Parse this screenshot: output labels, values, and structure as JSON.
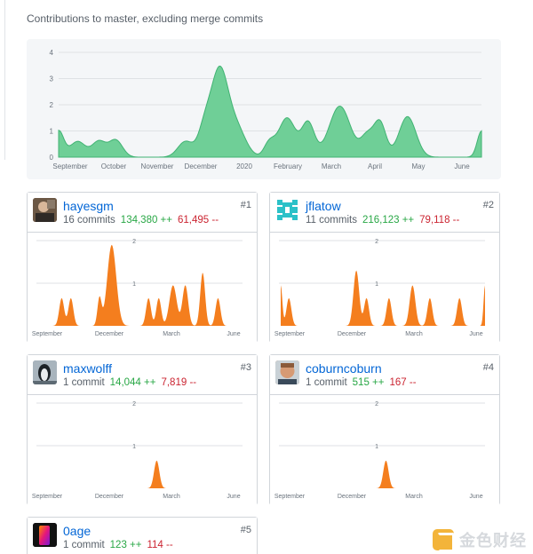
{
  "caption": "Contributions to master, excluding merge commits",
  "colors": {
    "main_fill": "#6fcf97",
    "main_stroke": "#41b373",
    "user_fill": "#f47e1e",
    "link": "#0366d6",
    "additions": "#28a745",
    "deletions": "#cb2431"
  },
  "chart_data": [
    {
      "type": "area",
      "title": "Contributions to master, excluding merge commits",
      "y_ticks": [
        "0",
        "1",
        "2",
        "3",
        "4"
      ],
      "ylim": [
        0,
        4
      ],
      "x_labels": [
        "September",
        "October",
        "November",
        "December",
        "2020",
        "February",
        "March",
        "April",
        "May",
        "June"
      ],
      "grid": true,
      "peaks": [
        {
          "at": 0.0,
          "h": 1.0,
          "w": 0.012
        },
        {
          "at": 0.045,
          "h": 0.6,
          "w": 0.018
        },
        {
          "at": 0.095,
          "h": 0.6,
          "w": 0.016
        },
        {
          "at": 0.135,
          "h": 0.65,
          "w": 0.016
        },
        {
          "at": 0.3,
          "h": 0.6,
          "w": 0.018
        },
        {
          "at": 0.345,
          "h": 1.0,
          "w": 0.015
        },
        {
          "at": 0.38,
          "h": 3.2,
          "w": 0.02
        },
        {
          "at": 0.42,
          "h": 1.1,
          "w": 0.022
        },
        {
          "at": 0.49,
          "h": 0.1,
          "w": 0.01
        },
        {
          "at": 0.5,
          "h": 0.45,
          "w": 0.012
        },
        {
          "at": 0.54,
          "h": 1.5,
          "w": 0.02
        },
        {
          "at": 0.59,
          "h": 1.3,
          "w": 0.015
        },
        {
          "at": 0.665,
          "h": 1.95,
          "w": 0.025
        },
        {
          "at": 0.73,
          "h": 0.8,
          "w": 0.015
        },
        {
          "at": 0.76,
          "h": 1.3,
          "w": 0.014
        },
        {
          "at": 0.825,
          "h": 1.55,
          "w": 0.02
        },
        {
          "at": 1.0,
          "h": 1.0,
          "w": 0.01
        }
      ]
    },
    {
      "type": "area",
      "series": [
        {
          "name": "hayesgm"
        }
      ],
      "y_ticks": [
        "1",
        "2"
      ],
      "ylim": [
        0,
        2
      ],
      "x_labels": [
        "September",
        "December",
        "March",
        "June"
      ],
      "peaks": [
        {
          "at": 0.115,
          "h": 0.65,
          "w": 0.012
        },
        {
          "at": 0.16,
          "h": 0.65,
          "w": 0.012
        },
        {
          "at": 0.3,
          "h": 0.65,
          "w": 0.01
        },
        {
          "at": 0.36,
          "h": 1.9,
          "w": 0.022
        },
        {
          "at": 0.54,
          "h": 0.65,
          "w": 0.012
        },
        {
          "at": 0.59,
          "h": 0.65,
          "w": 0.012
        },
        {
          "at": 0.66,
          "h": 0.95,
          "w": 0.018
        },
        {
          "at": 0.72,
          "h": 0.95,
          "w": 0.014
        },
        {
          "at": 0.805,
          "h": 1.25,
          "w": 0.012
        },
        {
          "at": 0.88,
          "h": 0.65,
          "w": 0.012
        }
      ]
    },
    {
      "type": "area",
      "series": [
        {
          "name": "jflatow"
        }
      ],
      "y_ticks": [
        "1",
        "2"
      ],
      "ylim": [
        0,
        2
      ],
      "x_labels": [
        "September",
        "December",
        "March",
        "June"
      ],
      "peaks": [
        {
          "at": 0.0,
          "h": 0.95,
          "w": 0.008
        },
        {
          "at": 0.04,
          "h": 0.65,
          "w": 0.012
        },
        {
          "at": 0.37,
          "h": 1.3,
          "w": 0.014
        },
        {
          "at": 0.42,
          "h": 0.65,
          "w": 0.012
        },
        {
          "at": 0.53,
          "h": 0.65,
          "w": 0.012
        },
        {
          "at": 0.645,
          "h": 0.95,
          "w": 0.014
        },
        {
          "at": 0.73,
          "h": 0.65,
          "w": 0.012
        },
        {
          "at": 0.875,
          "h": 0.65,
          "w": 0.012
        },
        {
          "at": 1.0,
          "h": 0.95,
          "w": 0.007
        }
      ]
    },
    {
      "type": "area",
      "series": [
        {
          "name": "maxwolff"
        }
      ],
      "y_ticks": [
        "1",
        "2"
      ],
      "ylim": [
        0,
        2
      ],
      "x_labels": [
        "September",
        "December",
        "March",
        "June"
      ],
      "peaks": [
        {
          "at": 0.58,
          "h": 0.65,
          "w": 0.013
        }
      ]
    },
    {
      "type": "area",
      "series": [
        {
          "name": "coburncoburn"
        }
      ],
      "y_ticks": [
        "1",
        "2"
      ],
      "ylim": [
        0,
        2
      ],
      "x_labels": [
        "September",
        "December",
        "March",
        "June"
      ],
      "peaks": [
        {
          "at": 0.515,
          "h": 0.65,
          "w": 0.013
        }
      ]
    }
  ],
  "contributors": [
    {
      "login": "hayesgm",
      "commits": "16 commits",
      "additions": "134,380 ++",
      "deletions": "61,495 --",
      "rank": "#1",
      "avatar_color": "#5b4636"
    },
    {
      "login": "jflatow",
      "commits": "11 commits",
      "additions": "216,123 ++",
      "deletions": "79,118 --",
      "rank": "#2",
      "avatar_color": "#2bc1c8"
    },
    {
      "login": "maxwolff",
      "commits": "1 commit",
      "additions": "14,044 ++",
      "deletions": "7,819 --",
      "rank": "#3",
      "avatar_color": "#7a8a96"
    },
    {
      "login": "coburncoburn",
      "commits": "1 commit",
      "additions": "515 ++",
      "deletions": "167 --",
      "rank": "#4",
      "avatar_color": "#b07a55"
    },
    {
      "login": "0age",
      "commits": "1 commit",
      "additions": "123 ++",
      "deletions": "114 --",
      "rank": "#5",
      "avatar_color": "#1a1020"
    }
  ],
  "watermark": "金色财经"
}
